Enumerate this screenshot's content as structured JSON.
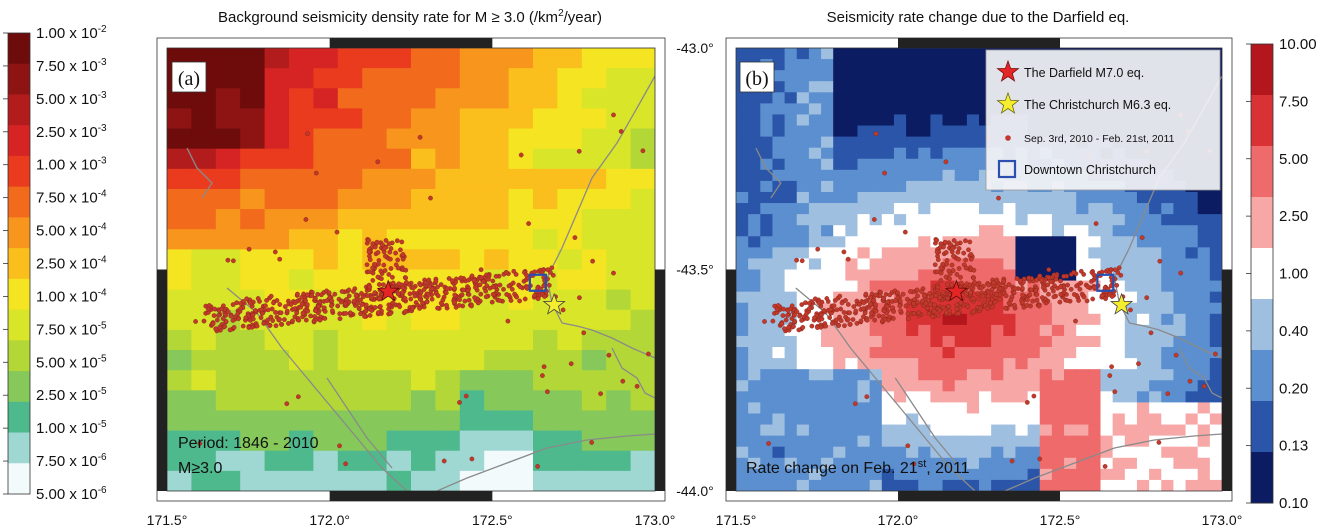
{
  "chart_data": [
    {
      "type": "heatmap",
      "panel_label": "(a)",
      "title": {
        "prefix": "Background seismicity density rate for M",
        "middle": "3.0 (/km",
        "sup": "2",
        "suffix": "/year)"
      },
      "x_ticks": [
        "171.5°",
        "172.0°",
        "172.5°",
        "173.0°"
      ],
      "xlim": [
        171.5,
        173.0
      ],
      "ylim": [
        -44.0,
        -43.0
      ],
      "colorbar": {
        "labels": [
          "1.00 x 10^-2",
          "7.50 x 10^-3",
          "5.00 x 10^-3",
          "2.50 x 10^-3",
          "1.00 x 10^-3",
          "7.50 x 10^-4",
          "5.00 x 10^-4",
          "2.50 x 10^-4",
          "1.00 x 10^-4",
          "7.50 x 10^-5",
          "5.00 x 10^-5",
          "2.50 x 10^-5",
          "1.00 x 10^-5",
          "7.50 x 10^-6",
          "5.00 x 10^-6"
        ],
        "colors": [
          "#6e0b0b",
          "#8e1414",
          "#b31c1c",
          "#d62424",
          "#ea3b1e",
          "#f26a1c",
          "#f7951c",
          "#fbbf1d",
          "#f4e422",
          "#d9e528",
          "#b3d737",
          "#86c85a",
          "#4fb98e",
          "#9fd8d2",
          "#f2fafb"
        ]
      },
      "annotations": [
        "Period: 1846 - 2010",
        "M≥3.0"
      ],
      "markers": {
        "darfield": {
          "lon": 172.18,
          "lat": -43.55,
          "color": "#e32525"
        },
        "christchurch": {
          "lon": 172.69,
          "lat": -43.58,
          "color": "#f5ee2e"
        },
        "downtown": {
          "lon": 172.64,
          "lat": -43.53,
          "color": "#2a4fb0"
        }
      }
    },
    {
      "type": "heatmap",
      "panel_label": "(b)",
      "title": "Seismicity rate change due to the Darfield eq.",
      "x_ticks": [
        "171.5°",
        "172.0°",
        "172.5°",
        "173.0°"
      ],
      "y_ticks": [
        "-43.0°",
        "-43.5°",
        "-44.0°"
      ],
      "xlim": [
        171.5,
        173.0
      ],
      "ylim": [
        -44.0,
        -43.0
      ],
      "colorbar": {
        "labels": [
          "10.00",
          "7.50",
          "5.00",
          "2.50",
          "1.00",
          "0.40",
          "0.20",
          "0.13",
          "0.10"
        ],
        "colors": [
          "#b3161d",
          "#d93235",
          "#ee6a6b",
          "#f6a7a6",
          "#ffffff",
          "#9fbfe0",
          "#5b8fcf",
          "#2a55a8",
          "#0c1c63"
        ]
      },
      "annotation": {
        "prefix": "Rate change on Feb. 21",
        "sup": "st",
        "suffix": ", 2011"
      },
      "legend": {
        "items": [
          {
            "label": "The Darfield M7.0 eq.",
            "symbol": "red-star"
          },
          {
            "label": "The Christchurch M6.3 eq.",
            "symbol": "yellow-star"
          },
          {
            "label": "Sep. 3rd, 2010 - Feb. 21st, 2011",
            "symbol": "red-dot"
          },
          {
            "label": "Downtown Christchurch",
            "symbol": "blue-square"
          }
        ],
        "placement": "top-right"
      },
      "markers": {
        "darfield": {
          "lon": 172.18,
          "lat": -43.55,
          "color": "#e32525"
        },
        "christchurch": {
          "lon": 172.69,
          "lat": -43.58,
          "color": "#f5ee2e"
        },
        "downtown": {
          "lon": 172.64,
          "lat": -43.53,
          "color": "#2a4fb0"
        }
      }
    }
  ]
}
